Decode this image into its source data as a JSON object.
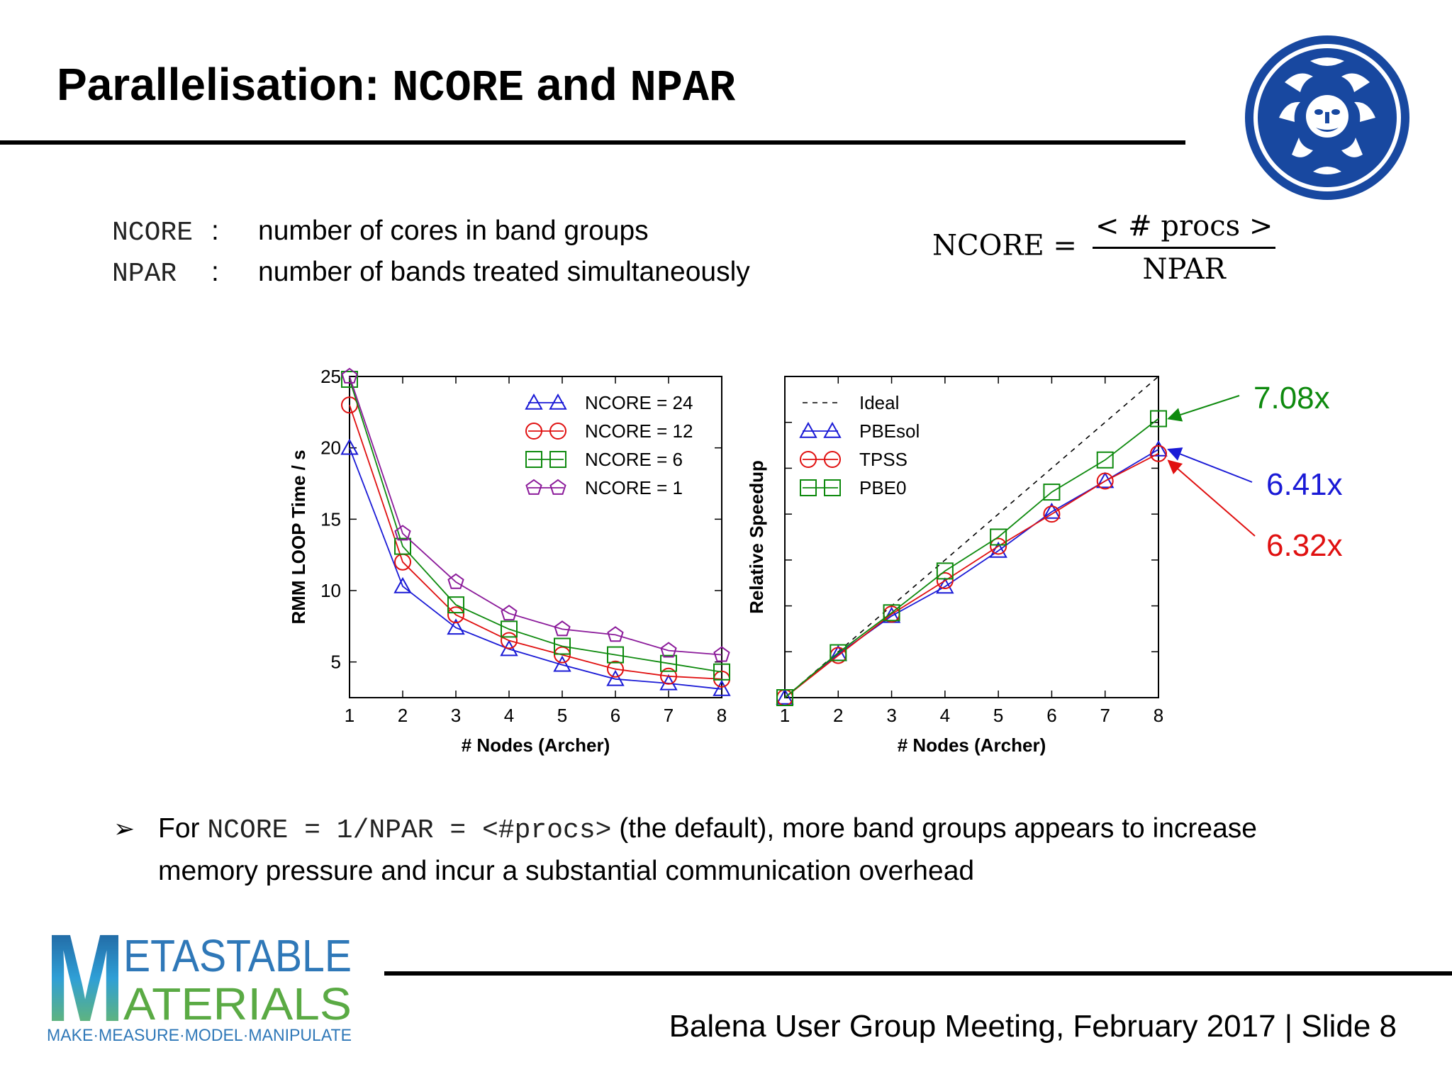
{
  "title": {
    "prefix": "Parallelisation: ",
    "code1": "NCORE",
    "mid": " and ",
    "code2": "NPAR"
  },
  "definitions": [
    {
      "key": "NCORE",
      "colon": ":",
      "desc": "number of cores in band groups"
    },
    {
      "key": "NPAR",
      "colon": ":",
      "desc": "number of bands treated simultaneously"
    }
  ],
  "formula": {
    "lhs": "NCORE =",
    "numerator": "< # procs >",
    "denominator": "NPAR"
  },
  "bullet": {
    "lead": "For ",
    "code": "NCORE = 1/NPAR = <#procs>",
    "rest": " (the default), more band groups appears to increase memory pressure and incur a substantial communication overhead"
  },
  "footer": "Balena User Group Meeting, February 2017 | Slide 8",
  "logo": {
    "line1": "ETASTABLE",
    "line2": "ATERIALS",
    "tagline": "MAKE·MEASURE·MODEL·MANIPULATE",
    "initial": "M"
  },
  "colors": {
    "blue": "#1a1ad6",
    "red": "#e01010",
    "green": "#0e8a0e",
    "purple": "#8b1a9a",
    "seal": "#1848a0"
  },
  "chart_data": [
    {
      "type": "line",
      "xlabel": "# Nodes (Archer)",
      "ylabel": "RMM LOOP Time / s",
      "xlim": [
        1,
        8
      ],
      "ylim": [
        2.5,
        25
      ],
      "xticks": [
        1,
        2,
        3,
        4,
        5,
        6,
        7,
        8
      ],
      "yticks": [
        5,
        10,
        15,
        20,
        25
      ],
      "legend_position": "top-right",
      "x": [
        1,
        2,
        3,
        4,
        5,
        6,
        7,
        8
      ],
      "series": [
        {
          "name": "NCORE = 24",
          "marker": "triangle",
          "color": "#1a1ad6",
          "values": [
            20.0,
            10.3,
            7.4,
            5.9,
            4.8,
            3.8,
            3.5,
            3.1
          ]
        },
        {
          "name": "NCORE = 12",
          "marker": "circle",
          "color": "#e01010",
          "values": [
            23.0,
            12.0,
            8.3,
            6.5,
            5.5,
            4.5,
            4.0,
            3.8
          ]
        },
        {
          "name": "NCORE = 6",
          "marker": "square",
          "color": "#0e8a0e",
          "values": [
            24.8,
            13.1,
            9.0,
            7.3,
            6.1,
            5.5,
            4.9,
            4.3
          ]
        },
        {
          "name": "NCORE = 1",
          "marker": "pentagon",
          "color": "#8b1a9a",
          "values": [
            25.0,
            14.0,
            10.6,
            8.4,
            7.3,
            6.9,
            5.8,
            5.5
          ]
        }
      ]
    },
    {
      "type": "line",
      "xlabel": "# Nodes (Archer)",
      "ylabel": "Relative Speedup",
      "xlim": [
        1,
        8
      ],
      "ylim": [
        1,
        8
      ],
      "xticks": [
        1,
        2,
        3,
        4,
        5,
        6,
        7,
        8
      ],
      "legend_position": "top-left",
      "x": [
        1,
        2,
        3,
        4,
        5,
        6,
        7,
        8
      ],
      "series": [
        {
          "name": "Ideal",
          "style": "dashed",
          "color": "#000000",
          "values": [
            1,
            2,
            3,
            4,
            5,
            6,
            7,
            8
          ]
        },
        {
          "name": "PBEsol",
          "marker": "triangle",
          "color": "#1a1ad6",
          "values": [
            1.0,
            1.95,
            2.78,
            3.42,
            4.2,
            5.05,
            5.72,
            6.41
          ]
        },
        {
          "name": "TPSS",
          "marker": "circle",
          "color": "#e01010",
          "values": [
            1.0,
            1.92,
            2.82,
            3.55,
            4.3,
            5.0,
            5.72,
            6.32
          ]
        },
        {
          "name": "PBE0",
          "marker": "square",
          "color": "#0e8a0e",
          "values": [
            1.0,
            1.98,
            2.85,
            3.76,
            4.5,
            5.48,
            6.18,
            7.08
          ]
        }
      ],
      "annotations": [
        {
          "text": "7.08x",
          "color": "#0e8a0e",
          "x": 8,
          "y": 7.08
        },
        {
          "text": "6.41x",
          "color": "#1a1ad6",
          "x": 8,
          "y": 6.41
        },
        {
          "text": "6.32x",
          "color": "#e01010",
          "x": 8,
          "y": 6.32
        }
      ]
    }
  ]
}
